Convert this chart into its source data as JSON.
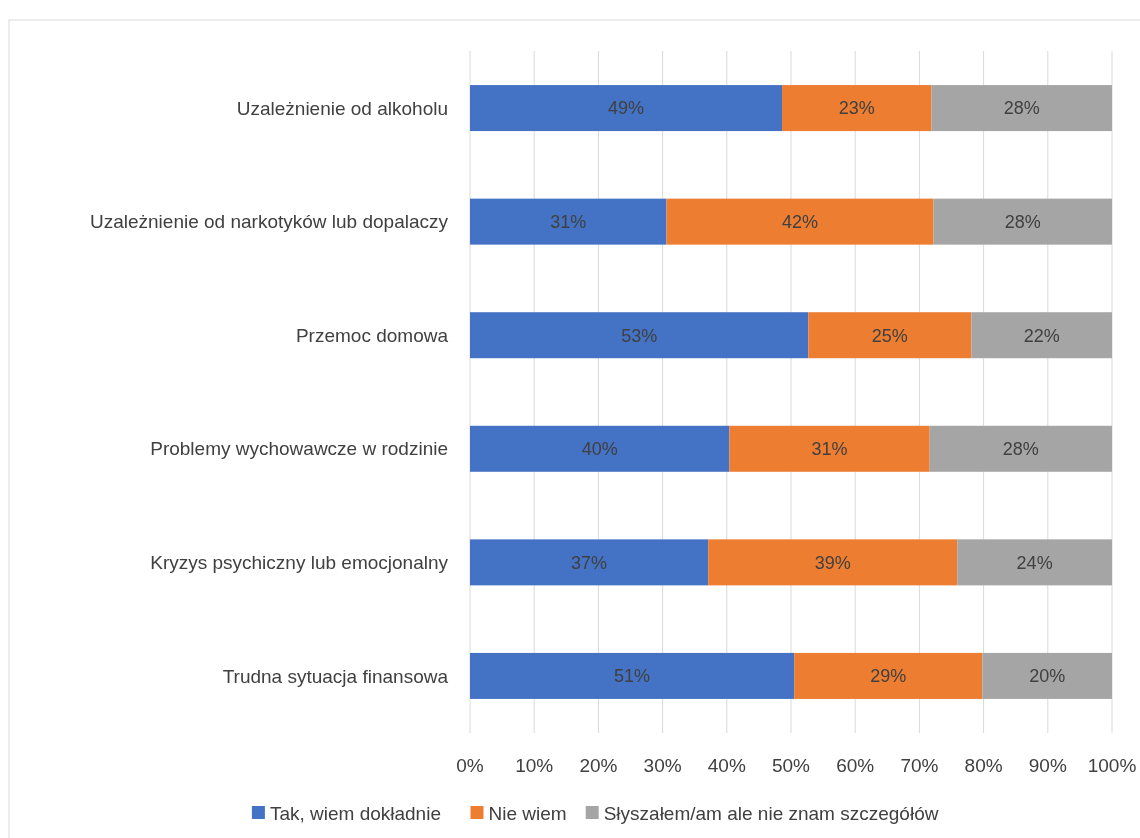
{
  "chart_data": {
    "type": "bar",
    "orientation": "horizontal",
    "stacked": true,
    "categories": [
      "Uzależnienie od alkoholu",
      "Uzależnienie od narkotyków lub dopalaczy",
      "Przemoc domowa",
      "Problemy wychowawcze w rodzinie",
      "Kryzys psychiczny lub emocjonalny",
      "Trudna sytuacja finansowa"
    ],
    "series": [
      {
        "name": "Tak, wiem dokładnie",
        "color": "#4472c4",
        "values": [
          48.6,
          30.6,
          52.7,
          40.4,
          37.1,
          50.5
        ],
        "value_labels": [
          "49%",
          "31%",
          "53%",
          "40%",
          "37%",
          "51%"
        ]
      },
      {
        "name": "Nie wiem",
        "color": "#ed7d31",
        "values": [
          23.3,
          41.6,
          25.4,
          31.2,
          38.8,
          29.3
        ],
        "value_labels": [
          "23%",
          "42%",
          "25%",
          "31%",
          "39%",
          "29%"
        ]
      },
      {
        "name": "Słyszałem/am ale nie znam szczegółów",
        "color": "#a5a5a5",
        "values": [
          28.1,
          27.8,
          21.9,
          28.4,
          24.1,
          20.2
        ],
        "value_labels": [
          "28%",
          "28%",
          "22%",
          "28%",
          "24%",
          "20%"
        ]
      }
    ],
    "xlim": [
      0,
      100
    ],
    "xticks": [
      {
        "value": 0,
        "label": "0%"
      },
      {
        "value": 10,
        "label": "10%"
      },
      {
        "value": 20,
        "label": "20%"
      },
      {
        "value": 30,
        "label": "30%"
      },
      {
        "value": 40,
        "label": "40%"
      },
      {
        "value": 50,
        "label": "50%"
      },
      {
        "value": 60,
        "label": "60%"
      },
      {
        "value": 70,
        "label": "70%"
      },
      {
        "value": 80,
        "label": "80%"
      },
      {
        "value": 90,
        "label": "90%"
      },
      {
        "value": 100,
        "label": "100%"
      }
    ],
    "grid": "x",
    "legend": "bottom"
  }
}
